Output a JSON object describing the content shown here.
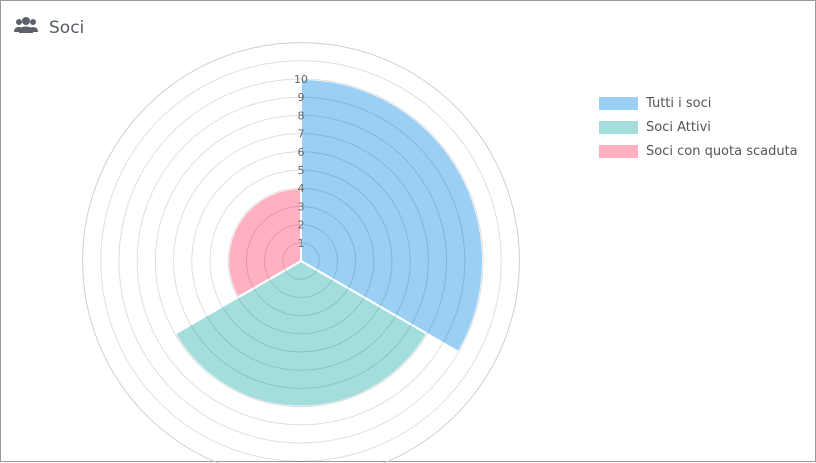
{
  "header": {
    "title": "Soci",
    "icon": "users-icon"
  },
  "chart_data": {
    "type": "polarArea",
    "categories": [
      "Tutti i soci",
      "Soci Attivi",
      "Soci con quota scaduta"
    ],
    "values": [
      10,
      8,
      4
    ],
    "colors": [
      "#9ccff4",
      "#a3dedd",
      "#ffb1c1"
    ],
    "r_ticks": [
      "1",
      "2",
      "3",
      "4",
      "5",
      "6",
      "7",
      "8",
      "9",
      "10"
    ],
    "rlim": [
      0,
      12
    ],
    "legend_position": "right",
    "grid": true
  }
}
